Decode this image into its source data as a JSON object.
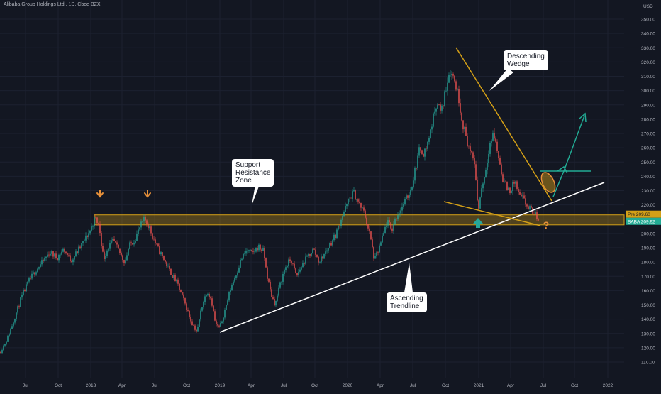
{
  "header": {
    "title": "Alibaba Group Holdings Ltd., 1D, Cboe BZX",
    "currency": "USD"
  },
  "chart_data": {
    "type": "candlestick",
    "ylim": [
      105,
      352
    ],
    "y_ticks": [
      110,
      120,
      130,
      140,
      150,
      160,
      170,
      180,
      190,
      200,
      210,
      220,
      230,
      240,
      250,
      260,
      270,
      280,
      290,
      300,
      310,
      320,
      330,
      340,
      350
    ],
    "x_ticks": [
      "Jul",
      "Oct",
      "2018",
      "Apr",
      "Jul",
      "Oct",
      "2019",
      "Apr",
      "Jul",
      "Oct",
      "2020",
      "Apr",
      "Jul",
      "Oct",
      "2021",
      "Apr",
      "Jul",
      "Oct",
      "2022"
    ],
    "last_price": {
      "label": "Pre",
      "value": "209.60"
    },
    "current_price": {
      "label": "BABA",
      "value": "209.92"
    },
    "price_path": [
      [
        0,
        117
      ],
      [
        10,
        126
      ],
      [
        20,
        140
      ],
      [
        30,
        155
      ],
      [
        40,
        166
      ],
      [
        50,
        174
      ],
      [
        60,
        180
      ],
      [
        70,
        187
      ],
      [
        80,
        183
      ],
      [
        90,
        189
      ],
      [
        100,
        181
      ],
      [
        110,
        188
      ],
      [
        120,
        196
      ],
      [
        128,
        203
      ],
      [
        134,
        211
      ],
      [
        140,
        205
      ],
      [
        146,
        182
      ],
      [
        152,
        190
      ],
      [
        160,
        195
      ],
      [
        168,
        187
      ],
      [
        176,
        180
      ],
      [
        182,
        191
      ],
      [
        190,
        196
      ],
      [
        198,
        205
      ],
      [
        204,
        210
      ],
      [
        210,
        205
      ],
      [
        216,
        197
      ],
      [
        222,
        190
      ],
      [
        230,
        183
      ],
      [
        240,
        173
      ],
      [
        250,
        165
      ],
      [
        260,
        152
      ],
      [
        270,
        138
      ],
      [
        278,
        131
      ],
      [
        284,
        148
      ],
      [
        292,
        160
      ],
      [
        298,
        154
      ],
      [
        304,
        136
      ],
      [
        310,
        134
      ],
      [
        318,
        148
      ],
      [
        326,
        163
      ],
      [
        334,
        173
      ],
      [
        340,
        182
      ],
      [
        348,
        188
      ],
      [
        356,
        186
      ],
      [
        364,
        191
      ],
      [
        372,
        187
      ],
      [
        376,
        172
      ],
      [
        382,
        158
      ],
      [
        388,
        150
      ],
      [
        394,
        163
      ],
      [
        402,
        176
      ],
      [
        410,
        182
      ],
      [
        418,
        170
      ],
      [
        426,
        178
      ],
      [
        434,
        184
      ],
      [
        442,
        189
      ],
      [
        450,
        180
      ],
      [
        458,
        186
      ],
      [
        466,
        193
      ],
      [
        474,
        200
      ],
      [
        482,
        212
      ],
      [
        490,
        221
      ],
      [
        498,
        229
      ],
      [
        506,
        221
      ],
      [
        514,
        214
      ],
      [
        522,
        198
      ],
      [
        528,
        181
      ],
      [
        534,
        189
      ],
      [
        540,
        198
      ],
      [
        546,
        209
      ],
      [
        552,
        202
      ],
      [
        558,
        211
      ],
      [
        566,
        218
      ],
      [
        574,
        225
      ],
      [
        580,
        232
      ],
      [
        586,
        246
      ],
      [
        592,
        260
      ],
      [
        598,
        256
      ],
      [
        604,
        265
      ],
      [
        610,
        279
      ],
      [
        616,
        293
      ],
      [
        622,
        284
      ],
      [
        628,
        300
      ],
      [
        634,
        315
      ],
      [
        640,
        309
      ],
      [
        646,
        297
      ],
      [
        652,
        278
      ],
      [
        658,
        266
      ],
      [
        664,
        255
      ],
      [
        670,
        248
      ],
      [
        674,
        214
      ],
      [
        678,
        230
      ],
      [
        684,
        242
      ],
      [
        690,
        262
      ],
      [
        696,
        270
      ],
      [
        702,
        256
      ],
      [
        708,
        240
      ],
      [
        714,
        232
      ],
      [
        720,
        230
      ],
      [
        726,
        237
      ],
      [
        732,
        226
      ],
      [
        738,
        224
      ],
      [
        744,
        218
      ],
      [
        750,
        216
      ],
      [
        756,
        212
      ],
      [
        760,
        210
      ]
    ],
    "annotations": {
      "support_zone": {
        "label": [
          "Support",
          "Resistance",
          "Zone"
        ],
        "y_range": [
          206,
          213
        ]
      },
      "ascending_trendline": {
        "label": [
          "Ascending",
          "Trendline"
        ]
      },
      "descending_wedge": {
        "label": [
          "Descending",
          "Wedge"
        ]
      },
      "question_mark": "?"
    }
  },
  "colors": {
    "up": "#26a69a",
    "down": "#ef5350",
    "background": "#131722",
    "zone": "#d4a017",
    "arrow_orange": "#e8913a",
    "arrow_green": "#26a69a",
    "target_green": "#22ab94"
  }
}
